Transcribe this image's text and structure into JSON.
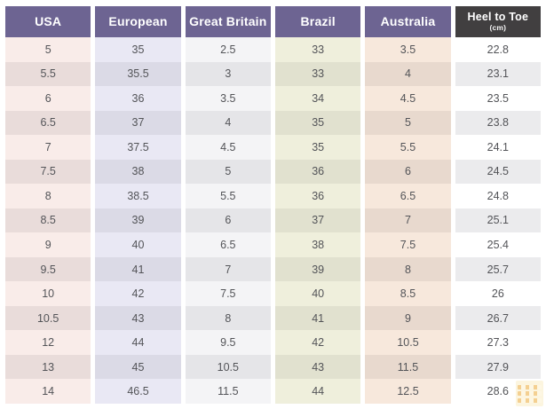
{
  "chart_data": {
    "type": "table",
    "description": "Shoe size conversion table across regions with foot length",
    "columns": [
      {
        "label": "USA",
        "values": [
          "5",
          "5.5",
          "6",
          "6.5",
          "7",
          "7.5",
          "8",
          "8.5",
          "9",
          "9.5",
          "10",
          "10.5",
          "12",
          "13",
          "14"
        ]
      },
      {
        "label": "European",
        "values": [
          "35",
          "35.5",
          "36",
          "37",
          "37.5",
          "38",
          "38.5",
          "39",
          "40",
          "41",
          "42",
          "43",
          "44",
          "45",
          "46.5"
        ]
      },
      {
        "label": "Great Britain",
        "values": [
          "2.5",
          "3",
          "3.5",
          "4",
          "4.5",
          "5",
          "5.5",
          "6",
          "6.5",
          "7",
          "7.5",
          "8",
          "9.5",
          "10.5",
          "11.5"
        ]
      },
      {
        "label": "Brazil",
        "values": [
          "33",
          "33",
          "34",
          "35",
          "35",
          "36",
          "36",
          "37",
          "38",
          "39",
          "40",
          "41",
          "42",
          "43",
          "44"
        ]
      },
      {
        "label": "Australia",
        "values": [
          "3.5",
          "4",
          "4.5",
          "5",
          "5.5",
          "6",
          "6.5",
          "7",
          "7.5",
          "8",
          "8.5",
          "9",
          "10.5",
          "11.5",
          "12.5"
        ]
      },
      {
        "label": "Heel to Toe",
        "sublabel": "(cm)",
        "values": [
          "22.8",
          "23.1",
          "23.5",
          "23.8",
          "24.1",
          "24.5",
          "24.8",
          "25.1",
          "25.4",
          "25.7",
          "26",
          "26.7",
          "27.3",
          "27.9",
          "28.6"
        ]
      }
    ]
  },
  "colors": {
    "header_bg": "#6d6492",
    "header_bg_last": "#413f40",
    "header_text": "#ffffff",
    "cell_text": "#535458",
    "column_backgrounds": [
      {
        "light": "#f9ece9",
        "dark": "#e9dcda"
      },
      {
        "light": "#e9e8f4",
        "dark": "#dbdae6"
      },
      {
        "light": "#f4f4f6",
        "dark": "#e5e5e8"
      },
      {
        "light": "#efefdc",
        "dark": "#e1e1cf"
      },
      {
        "light": "#f7e8dc",
        "dark": "#e8d9ce"
      },
      {
        "light": "#ffffff",
        "dark": "#ebebed"
      }
    ]
  }
}
